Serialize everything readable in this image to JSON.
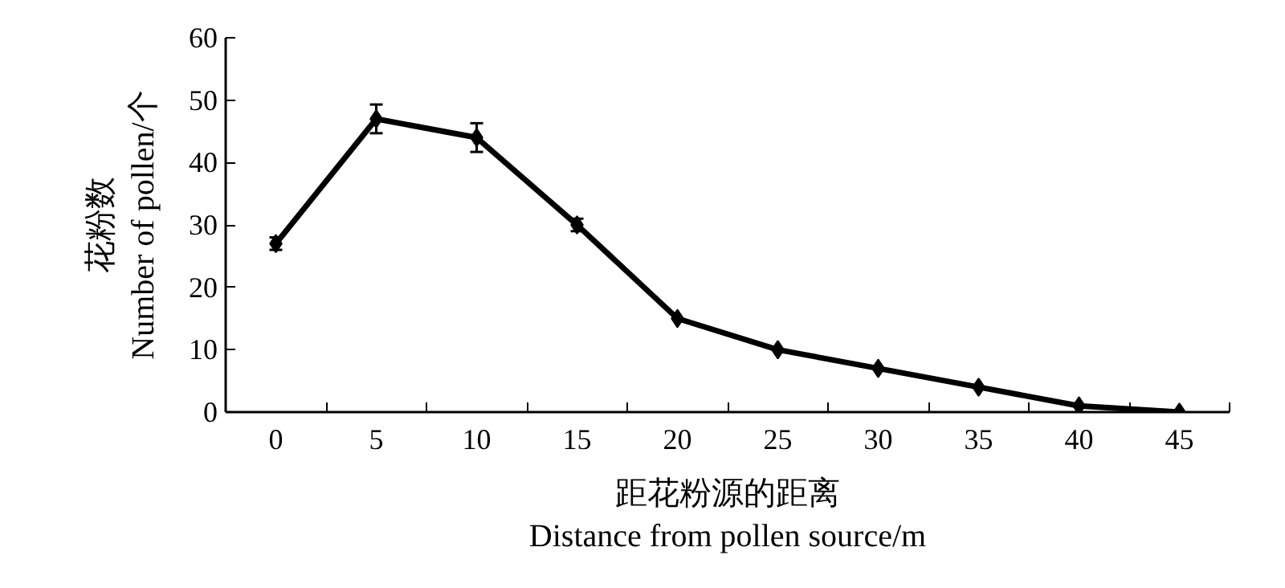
{
  "chart_data": {
    "type": "line",
    "xlabel": "距花粉源的距离\nDistance from pollen source/m",
    "ylabel": "花粉数\nNumber of pollen/个",
    "categories": [
      "0",
      "5",
      "10",
      "15",
      "20",
      "25",
      "30",
      "35",
      "40",
      "45"
    ],
    "series": [
      {
        "color": "#000000",
        "values": [
          27,
          47,
          44,
          30,
          15,
          10,
          7,
          4,
          1,
          0
        ],
        "errors": [
          1,
          2.3,
          2.3,
          1,
          null,
          null,
          null,
          null,
          null,
          null
        ]
      }
    ],
    "ylim": [
      0,
      60
    ],
    "yticks": [
      0,
      10,
      20,
      30,
      40,
      50,
      60
    ],
    "grid": false,
    "marker": "diamond",
    "line_style": "solid"
  }
}
